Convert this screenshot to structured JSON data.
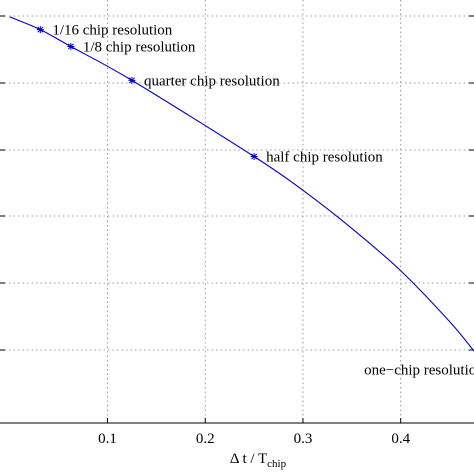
{
  "chart_data": {
    "type": "line",
    "xlabel": "Δ t / T",
    "xlabel_sub": "chip",
    "xlim": [
      -0.01,
      0.475
    ],
    "x_ticks": [
      0.1,
      0.2,
      0.3,
      0.4
    ],
    "x_tick_labels": [
      "0.1",
      "0.2",
      "0.3",
      "0.4"
    ],
    "y_gridlines": 6,
    "grid": true,
    "color": "#0000cc",
    "series": [
      {
        "x": [
          0,
          0.03125,
          0.0625,
          0.125,
          0.25,
          0.3,
          0.35,
          0.4,
          0.45,
          0.475
        ],
        "y": [
          0.96,
          0.93,
          0.89,
          0.81,
          0.63,
          0.55,
          0.46,
          0.36,
          0.24,
          0.17
        ]
      }
    ],
    "markers": [
      {
        "x": 0.03125,
        "y": 0.93,
        "label": "1/16 chip resolution"
      },
      {
        "x": 0.0625,
        "y": 0.89,
        "label": "1/8 chip resolution"
      },
      {
        "x": 0.125,
        "y": 0.81,
        "label": "quarter chip resolution"
      },
      {
        "x": 0.25,
        "y": 0.63,
        "label": "half chip resolution"
      }
    ],
    "annotations": [
      {
        "x": 0.485,
        "y": 0.115,
        "label": "one−chip resolution"
      }
    ]
  }
}
